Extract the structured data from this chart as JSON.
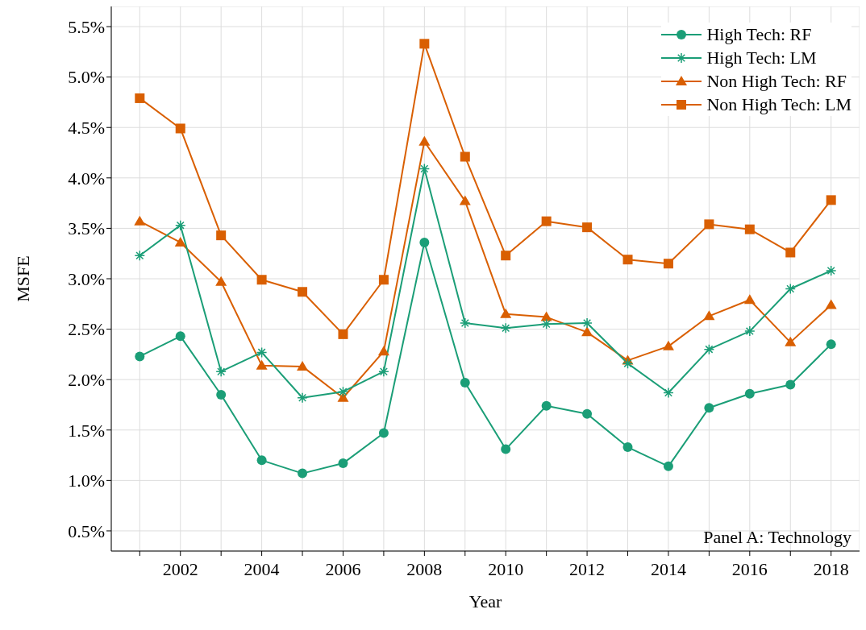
{
  "chart_data": {
    "type": "line",
    "xlabel": "Year",
    "ylabel": "MSFE",
    "x": [
      2001,
      2002,
      2003,
      2004,
      2005,
      2006,
      2007,
      2008,
      2009,
      2010,
      2011,
      2012,
      2013,
      2014,
      2015,
      2016,
      2017,
      2018
    ],
    "series": [
      {
        "name": "High Tech: RF",
        "color": "#1b9e77",
        "marker": "circle",
        "values": [
          2.23,
          2.43,
          1.85,
          1.2,
          1.07,
          1.17,
          1.47,
          3.36,
          1.97,
          1.31,
          1.74,
          1.66,
          1.33,
          1.14,
          1.72,
          1.86,
          1.95,
          2.35
        ]
      },
      {
        "name": "High Tech: LM",
        "color": "#1b9e77",
        "marker": "cross",
        "values": [
          3.23,
          3.53,
          2.08,
          2.27,
          1.82,
          1.88,
          2.08,
          4.09,
          2.56,
          2.51,
          2.55,
          2.56,
          2.16,
          1.87,
          2.3,
          2.48,
          2.9,
          3.08
        ]
      },
      {
        "name": "Non High Tech: RF",
        "color": "#d95f02",
        "marker": "triangle",
        "values": [
          3.57,
          3.36,
          2.97,
          2.14,
          2.13,
          1.82,
          2.28,
          4.36,
          3.77,
          2.65,
          2.62,
          2.47,
          2.19,
          2.33,
          2.63,
          2.79,
          2.37,
          2.74
        ]
      },
      {
        "name": "Non High Tech: LM",
        "color": "#d95f02",
        "marker": "square",
        "values": [
          4.79,
          4.49,
          3.43,
          2.99,
          2.87,
          2.45,
          2.99,
          5.33,
          4.21,
          3.23,
          3.57,
          3.51,
          3.19,
          3.15,
          3.54,
          3.49,
          3.26,
          3.78
        ]
      }
    ],
    "xlim": [
      2000.3,
      2018.7
    ],
    "xticks": [
      {
        "value": 2001,
        "label": null
      },
      2002,
      {
        "value": 2003,
        "label": null
      },
      2004,
      {
        "value": 2005,
        "label": null
      },
      2006,
      {
        "value": 2007,
        "label": null
      },
      2008,
      {
        "value": 2009,
        "label": null
      },
      2010,
      {
        "value": 2011,
        "label": null
      },
      2012,
      {
        "value": 2013,
        "label": null
      },
      2014,
      {
        "value": 2015,
        "label": null
      },
      2016,
      {
        "value": 2017,
        "label": null
      },
      2018
    ],
    "ylim": [
      0.3,
      5.7
    ],
    "yticks": [
      {
        "value": 0.5,
        "label": "0.5%"
      },
      {
        "value": 1,
        "label": "1.0%"
      },
      {
        "value": 1.5,
        "label": "1.5%"
      },
      {
        "value": 2,
        "label": "2.0%"
      },
      {
        "value": 2.5,
        "label": "2.5%"
      },
      {
        "value": 3,
        "label": "3.0%"
      },
      {
        "value": 3.5,
        "label": "3.5%"
      },
      {
        "value": 4,
        "label": "4.0%"
      },
      {
        "value": 4.5,
        "label": "4.5%"
      },
      {
        "value": 5,
        "label": "5.0%"
      },
      {
        "value": 5.5,
        "label": "5.5%"
      }
    ],
    "grid": true,
    "legend": "top right",
    "line_style": "solid",
    "annotations": [
      "Panel A: Technology"
    ]
  }
}
